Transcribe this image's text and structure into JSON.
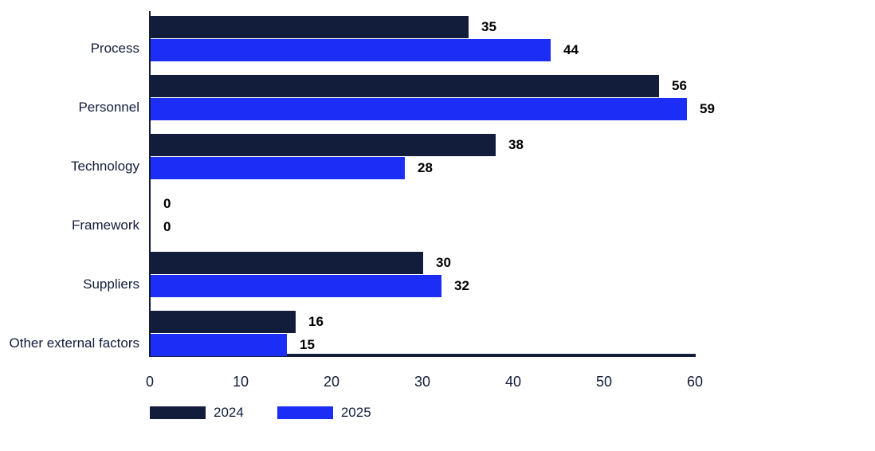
{
  "chart_data": {
    "type": "bar",
    "orientation": "horizontal",
    "title": "",
    "categories": [
      "Process",
      "Personnel",
      "Technology",
      "Framework",
      "Suppliers",
      "Other external factors"
    ],
    "series": [
      {
        "name": "2024",
        "color": "#121D3B",
        "values": [
          35,
          56,
          38,
          0,
          30,
          16
        ]
      },
      {
        "name": "2025",
        "color": "#1C2EF5",
        "values": [
          44,
          59,
          28,
          0,
          32,
          15
        ]
      }
    ],
    "xlim": [
      0,
      60
    ],
    "xticks": [
      0,
      10,
      20,
      30,
      40,
      50,
      60
    ],
    "grid": false,
    "value_labels": true,
    "legend_position": "bottom-left",
    "colors": {
      "background": "#FFFFFF",
      "axis": "#121D3B",
      "category_text": "#121D3B",
      "tick_text": "#121D3B",
      "value_text": "#000000",
      "legend_text": "#121D3B"
    }
  }
}
